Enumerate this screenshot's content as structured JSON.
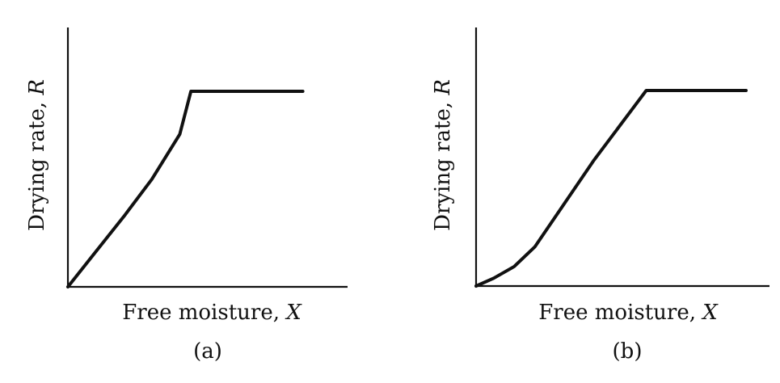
{
  "chart_data": [
    {
      "type": "line",
      "caption": "(a)",
      "xlabel": {
        "text": "Free moisture, ",
        "var": "X"
      },
      "ylabel": {
        "text": "Drying rate, ",
        "var": "R"
      },
      "xlim": [
        0,
        1
      ],
      "ylim": [
        0,
        1
      ],
      "series": [
        {
          "x": [
            0.0,
            0.1,
            0.2,
            0.3,
            0.4,
            0.44,
            0.84
          ],
          "y": [
            0.0,
            0.18,
            0.36,
            0.55,
            0.78,
            1.0,
            1.0
          ]
        }
      ]
    },
    {
      "type": "line",
      "caption": "(b)",
      "xlabel": {
        "text": "Free moisture, ",
        "var": "X"
      },
      "ylabel": {
        "text": "Drying rate, ",
        "var": "R"
      },
      "xlim": [
        0,
        1
      ],
      "ylim": [
        0,
        1
      ],
      "series": [
        {
          "x": [
            0.0,
            0.06,
            0.13,
            0.2,
            0.3,
            0.4,
            0.48,
            0.58
          ],
          "y": [
            0.0,
            0.04,
            0.1,
            0.2,
            0.42,
            0.64,
            0.8,
            1.0
          ]
        },
        {
          "x": [
            0.58,
            0.92
          ],
          "y": [
            1.0,
            1.0
          ]
        }
      ]
    }
  ]
}
